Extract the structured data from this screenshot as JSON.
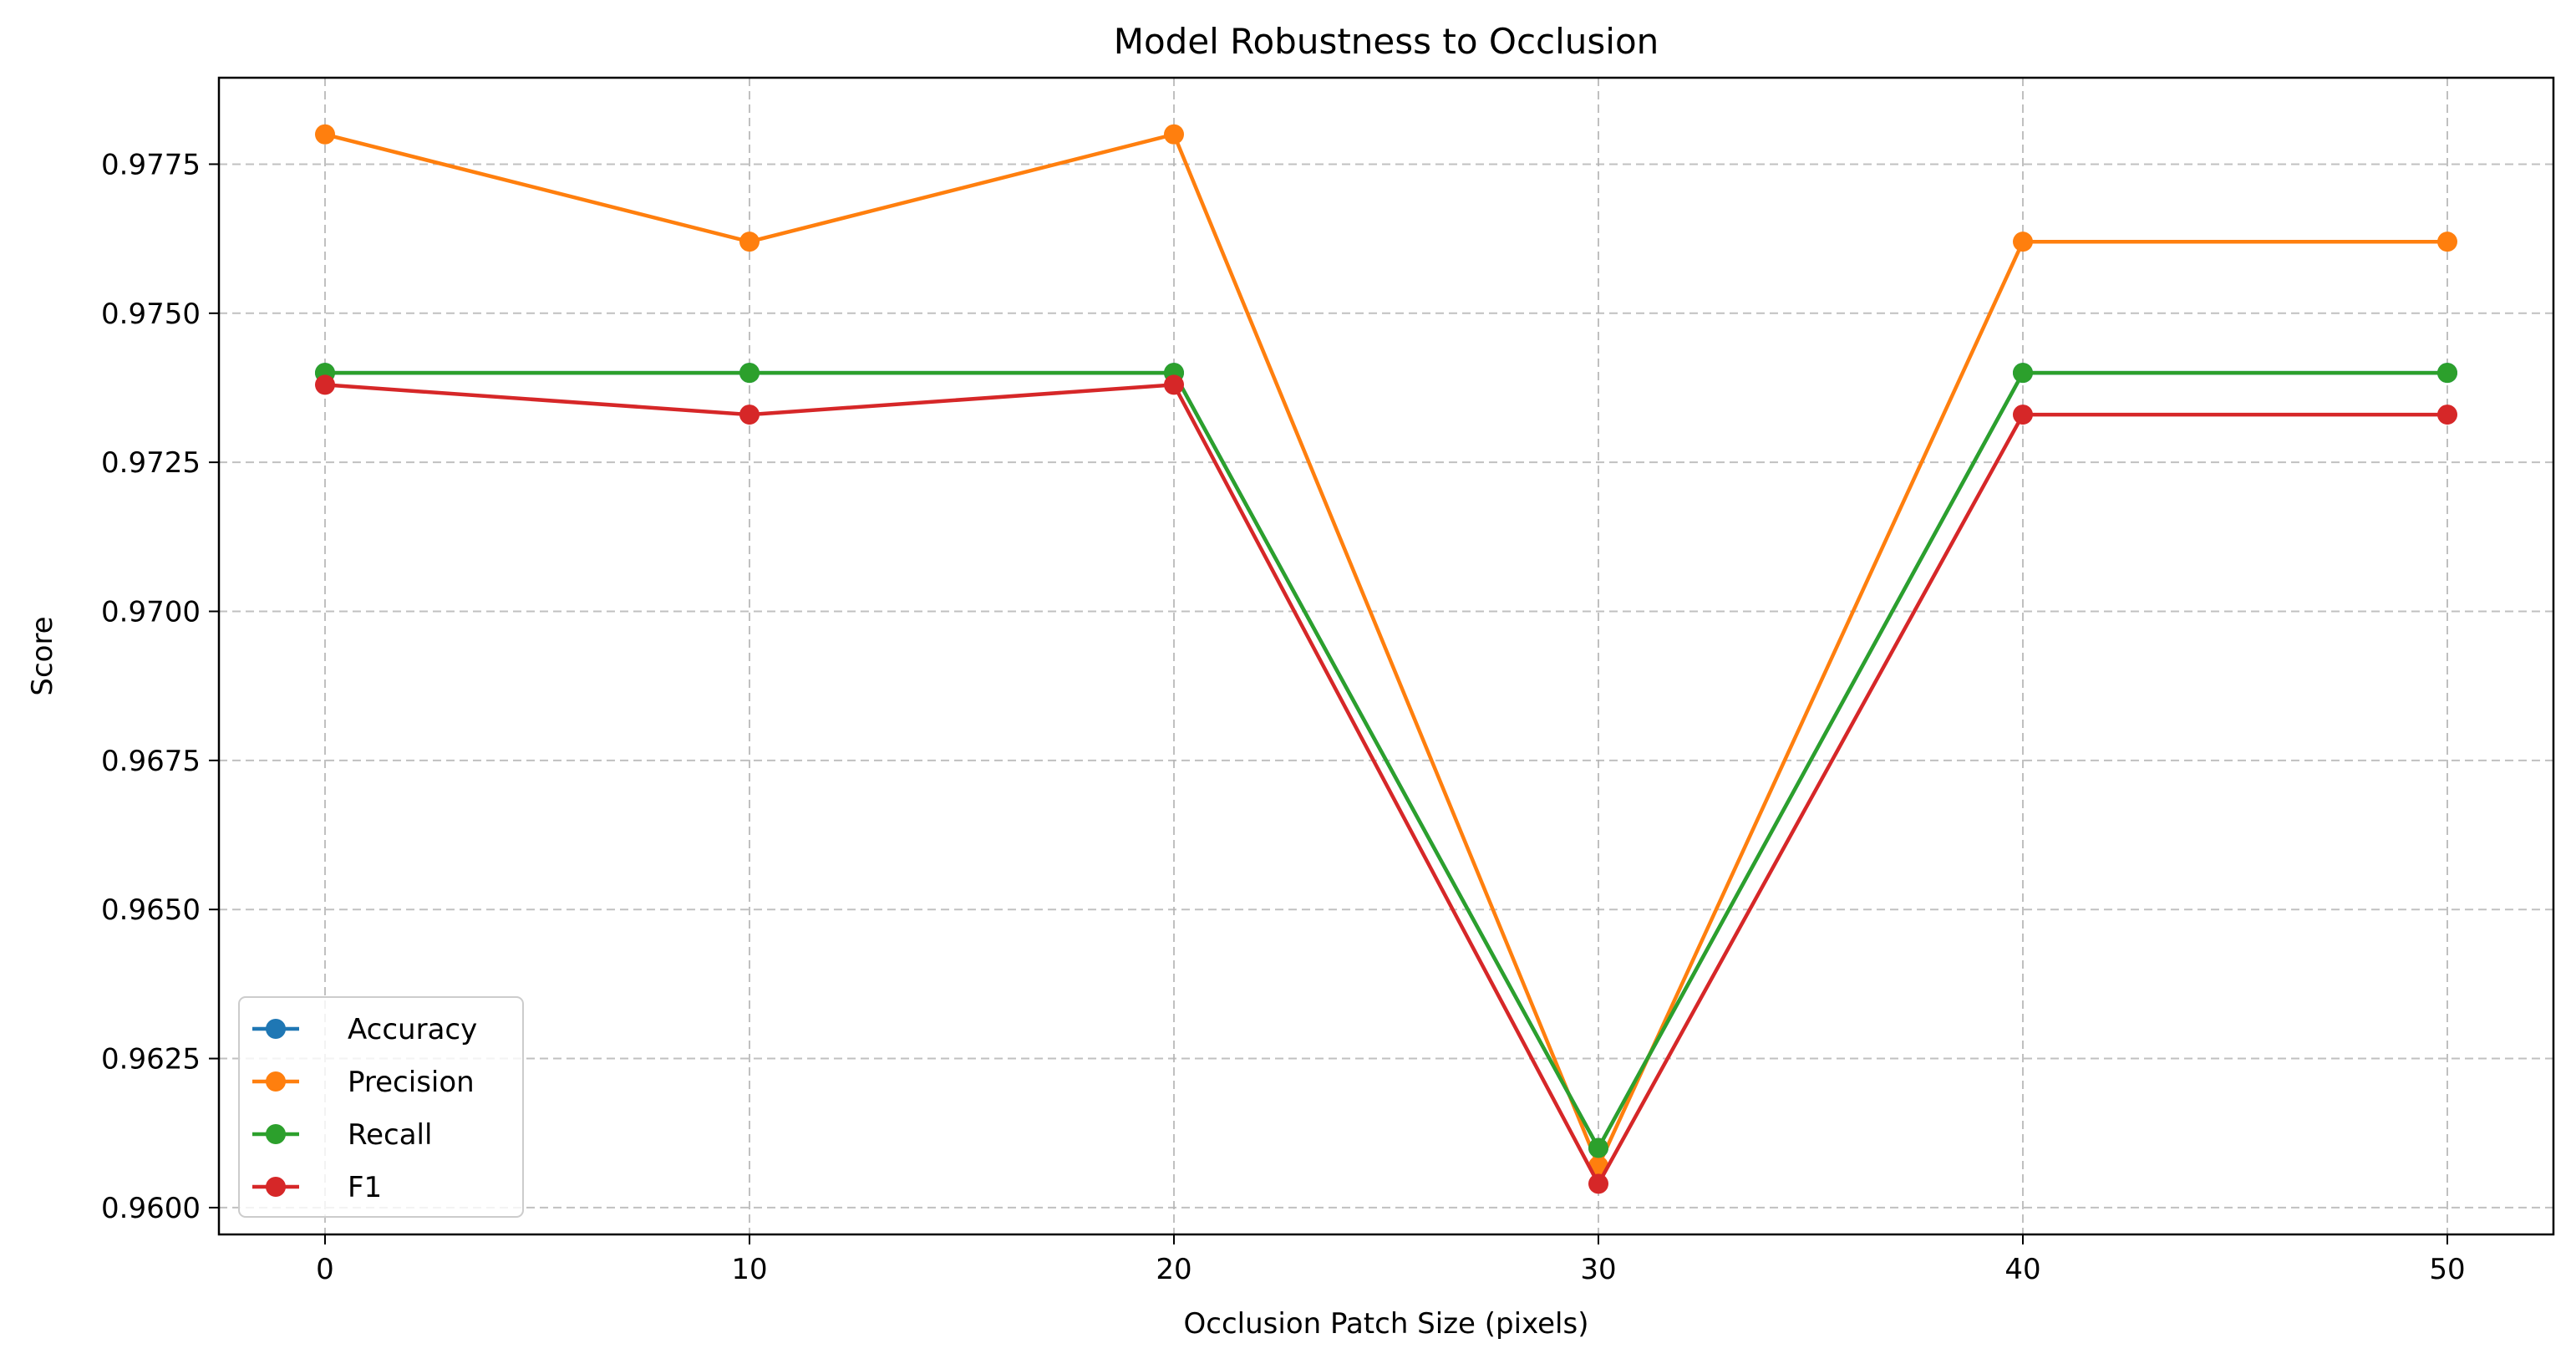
{
  "chart_data": {
    "type": "line",
    "title": "Model Robustness to Occlusion",
    "xlabel": "Occlusion Patch Size (pixels)",
    "ylabel": "Score",
    "x": [
      0,
      10,
      20,
      30,
      40,
      50
    ],
    "xlim": [
      -2.5,
      52.5
    ],
    "ylim": [
      0.95955,
      0.97895
    ],
    "xticks": [
      0,
      10,
      20,
      30,
      40,
      50
    ],
    "xtick_labels": [
      "0",
      "10",
      "20",
      "30",
      "40",
      "50"
    ],
    "yticks": [
      0.96,
      0.9625,
      0.965,
      0.9675,
      0.97,
      0.9725,
      0.975,
      0.9775
    ],
    "ytick_labels": [
      "0.9600",
      "0.9625",
      "0.9650",
      "0.9675",
      "0.9700",
      "0.9725",
      "0.9750",
      "0.9775"
    ],
    "grid": true,
    "legend_position": "lower-left",
    "series": [
      {
        "name": "Accuracy",
        "color": "#1f77b4",
        "values": [
          0.974,
          0.974,
          0.974,
          0.961,
          0.974,
          0.974
        ]
      },
      {
        "name": "Precision",
        "color": "#ff7f0e",
        "values": [
          0.978,
          0.9762,
          0.978,
          0.9607,
          0.9762,
          0.9762
        ]
      },
      {
        "name": "Recall",
        "color": "#2ca02c",
        "values": [
          0.974,
          0.974,
          0.974,
          0.961,
          0.974,
          0.974
        ]
      },
      {
        "name": "F1",
        "color": "#d62728",
        "values": [
          0.9738,
          0.9733,
          0.9738,
          0.9604,
          0.9733,
          0.9733
        ]
      }
    ]
  }
}
